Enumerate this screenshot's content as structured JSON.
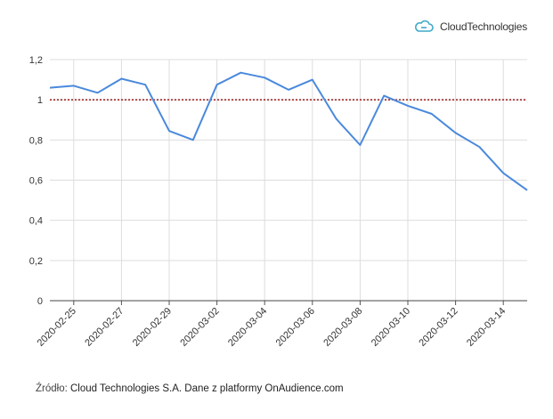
{
  "brand": {
    "logo_text": "CloudTechnologies",
    "logo_color": "#3fa9c9"
  },
  "source": {
    "label": "Źródło:",
    "text": "Cloud Technologies S.A. Dane z platformy OnAudience.com"
  },
  "chart_data": {
    "type": "line",
    "title": "",
    "xlabel": "",
    "ylabel": "",
    "x": [
      "2020-02-24",
      "2020-02-25",
      "2020-02-26",
      "2020-02-27",
      "2020-02-28",
      "2020-02-29",
      "2020-03-01",
      "2020-03-02",
      "2020-03-03",
      "2020-03-04",
      "2020-03-05",
      "2020-03-06",
      "2020-03-07",
      "2020-03-08",
      "2020-03-09",
      "2020-03-10",
      "2020-03-11",
      "2020-03-12",
      "2020-03-13",
      "2020-03-14",
      "2020-03-15"
    ],
    "x_tick_labels": [
      "2020-02-25",
      "2020-02-27",
      "2020-02-29",
      "2020-03-02",
      "2020-03-04",
      "2020-03-06",
      "2020-03-08",
      "2020-03-10",
      "2020-03-12",
      "2020-03-14"
    ],
    "series": [
      {
        "values": [
          1.06,
          1.07,
          1.035,
          1.105,
          1.075,
          0.845,
          0.8,
          1.075,
          1.135,
          1.11,
          1.05,
          1.1,
          0.905,
          0.775,
          1.02,
          0.97,
          0.93,
          0.835,
          0.765,
          0.635,
          0.55
        ],
        "color": "#4a89dc"
      }
    ],
    "reference_line": {
      "y": 1,
      "color": "#a52a2a",
      "style": "dotted"
    },
    "ylim": [
      0,
      1.2
    ],
    "y_ticks": [
      0,
      0.2,
      0.4,
      0.6,
      0.8,
      1,
      1.2
    ],
    "y_tick_labels": [
      "0",
      "0,2",
      "0,4",
      "0,6",
      "0,8",
      "1",
      "1,2"
    ],
    "grid": true
  }
}
